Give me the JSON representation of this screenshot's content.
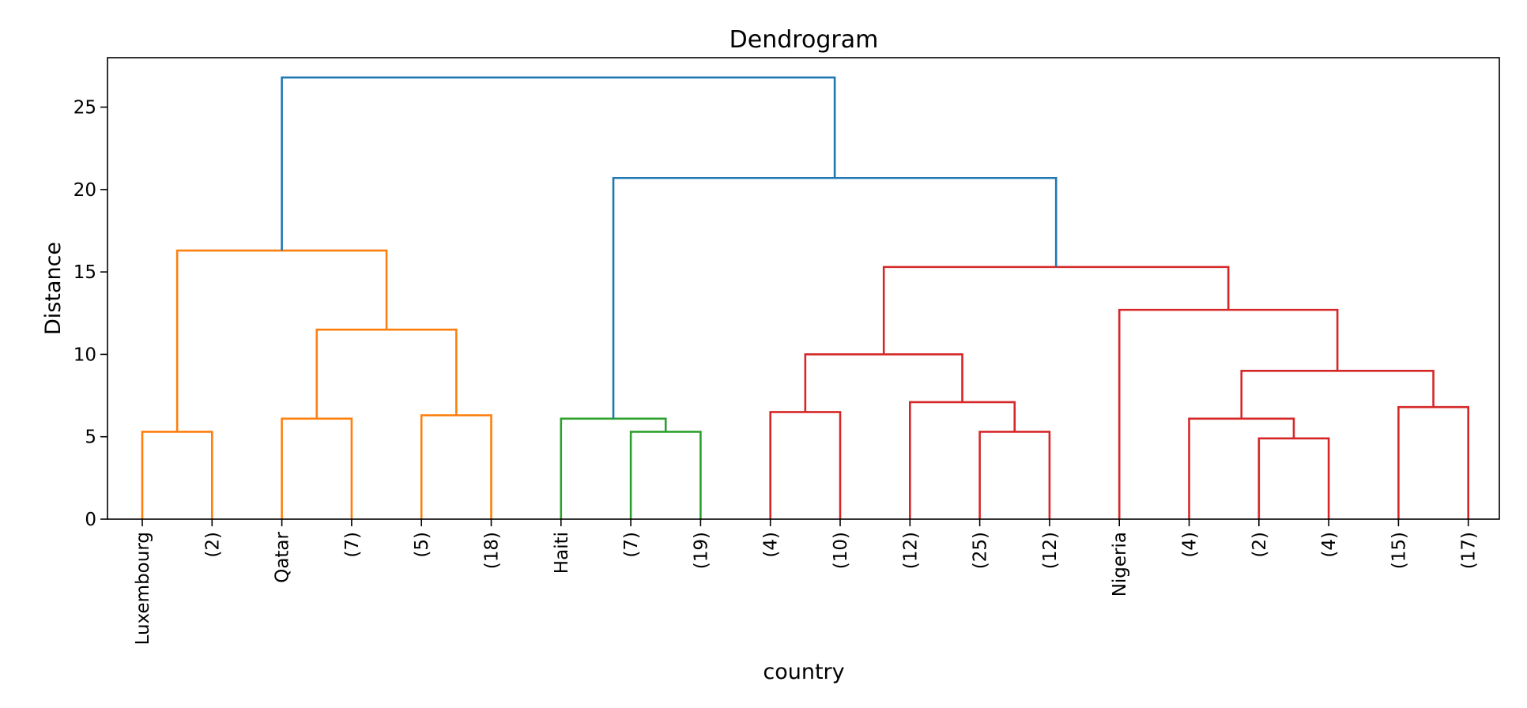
{
  "chart_data": {
    "type": "dendrogram",
    "title": "Dendrogram",
    "xlabel": "country",
    "ylabel": "Distance",
    "ylim": [
      0,
      28
    ],
    "yticks": [
      0,
      5,
      10,
      15,
      20,
      25
    ],
    "grid": false,
    "leaves": [
      "Luxembourg",
      "(2)",
      "Qatar",
      "(7)",
      "(5)",
      "(18)",
      "Haiti",
      "(7)",
      "(19)",
      "(4)",
      "(10)",
      "(12)",
      "(25)",
      "(12)",
      "Nigeria",
      "(4)",
      "(2)",
      "(4)",
      "(15)",
      "(17)"
    ],
    "colors": {
      "orange": "#ff7f0e",
      "green": "#2ca02c",
      "red": "#d62728",
      "blue": "#1f77b4"
    },
    "links": [
      {
        "left": 0,
        "right": 1,
        "height": 5.3,
        "color": "orange"
      },
      {
        "left": 2,
        "right": 3,
        "height": 6.1,
        "color": "orange"
      },
      {
        "left": 4,
        "right": 5,
        "height": 6.3,
        "color": "orange"
      },
      {
        "left": "L1",
        "right": "L2",
        "height": 11.5,
        "color": "orange"
      },
      {
        "left": "L0",
        "right": "L3",
        "height": 16.3,
        "color": "orange"
      },
      {
        "left": 7,
        "right": 8,
        "height": 5.3,
        "color": "green"
      },
      {
        "left": 6,
        "right": "L5",
        "height": 6.1,
        "color": "green"
      },
      {
        "left": 9,
        "right": 10,
        "height": 6.5,
        "color": "red"
      },
      {
        "left": 12,
        "right": 13,
        "height": 5.3,
        "color": "red"
      },
      {
        "left": 11,
        "right": "L8",
        "height": 7.1,
        "color": "red"
      },
      {
        "left": "L7",
        "right": "L9",
        "height": 10.0,
        "color": "red"
      },
      {
        "left": 16,
        "right": 17,
        "height": 4.9,
        "color": "red"
      },
      {
        "left": 15,
        "right": "L11",
        "height": 6.1,
        "color": "red"
      },
      {
        "left": 18,
        "right": 19,
        "height": 6.8,
        "color": "red"
      },
      {
        "left": "L12",
        "right": "L13",
        "height": 9.0,
        "color": "red"
      },
      {
        "left": 14,
        "right": "L14",
        "height": 12.7,
        "color": "red"
      },
      {
        "left": "L10",
        "right": "L15",
        "height": 15.3,
        "color": "red"
      },
      {
        "left": "L6",
        "right": "L16",
        "height": 20.7,
        "color": "blue"
      },
      {
        "left": "L4",
        "right": "L17",
        "height": 26.8,
        "color": "blue"
      }
    ]
  }
}
